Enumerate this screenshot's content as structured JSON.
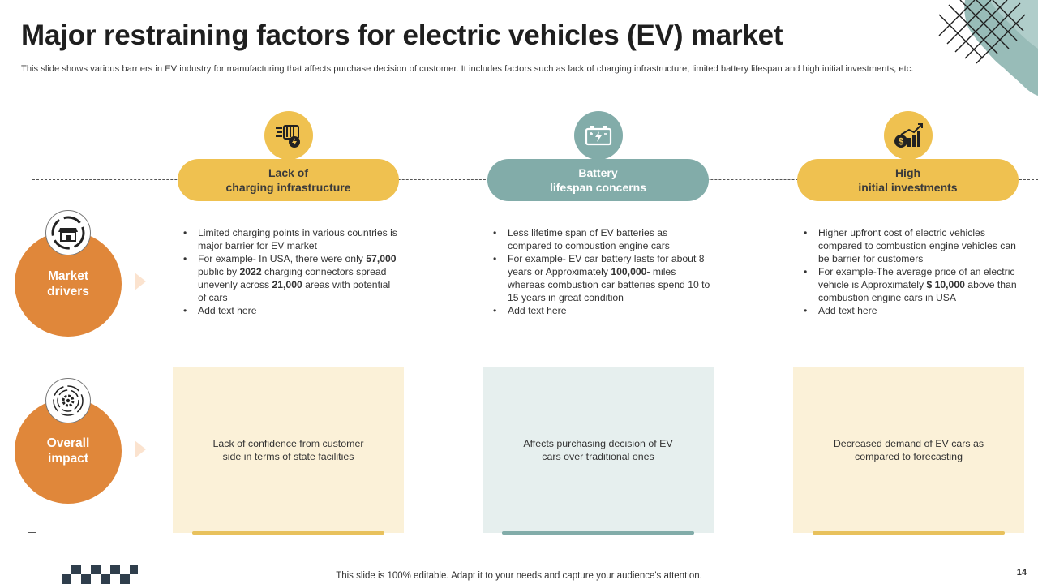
{
  "title": "Major restraining factors for electric vehicles (EV) market",
  "subtitle": "This slide shows various barriers in EV industry for manufacturing that affects purchase decision of customer. It includes factors such as lack of charging infrastructure, limited battery lifespan and high initial investments, etc.",
  "columns": [
    {
      "heading_line1": "Lack of",
      "heading_line2": "charging infrastructure",
      "icon": "charging-station-icon",
      "bullets": [
        [
          {
            "t": "Limited charging points in various countries is major barrier for EV market"
          }
        ],
        [
          {
            "t": "For example- In USA, there were only "
          },
          {
            "t": "57,000",
            "b": true
          },
          {
            "t": " public by "
          },
          {
            "t": "2022",
            "b": true
          },
          {
            "t": " charging connectors spread unevenly across "
          },
          {
            "t": "21,000",
            "b": true
          },
          {
            "t": " areas with potential of cars"
          }
        ],
        [
          {
            "t": "Add text here"
          }
        ]
      ],
      "impact": "Lack of confidence from customer side in terms of state facilities"
    },
    {
      "heading_line1": "Battery",
      "heading_line2": "lifespan concerns",
      "icon": "battery-icon",
      "bullets": [
        [
          {
            "t": "Less lifetime span of EV batteries as compared to  combustion engine cars"
          }
        ],
        [
          {
            "t": "For example- EV car battery lasts for about 8 years or Approximately "
          },
          {
            "t": "100,000-",
            "b": true
          },
          {
            "t": " miles whereas combustion car batteries spend 10 to 15 years in great condition"
          }
        ],
        [
          {
            "t": "Add text here"
          }
        ]
      ],
      "impact": "Affects purchasing decision of EV cars over traditional ones"
    },
    {
      "heading_line1": "High",
      "heading_line2": "initial investments",
      "icon": "investment-growth-icon",
      "bullets": [
        [
          {
            "t": "Higher upfront cost of electric vehicles compared to combustion engine vehicles can be barrier for customers"
          }
        ],
        [
          {
            "t": "For example-The average price of an electric vehicle is Approximately "
          },
          {
            "t": "$ 10,000",
            "b": true
          },
          {
            "t": " above than combustion engine cars in USA"
          }
        ],
        [
          {
            "t": "Add text here"
          }
        ]
      ],
      "impact": "Decreased demand of EV cars as compared to forecasting"
    }
  ],
  "rows": {
    "drivers": {
      "line1": "Market",
      "line2": "drivers",
      "icon": "market-shop-icon"
    },
    "impact": {
      "line1": "Overall",
      "line2": "impact",
      "icon": "gear-target-icon"
    }
  },
  "colors": {
    "yellow": "#efc150",
    "teal": "#82aca9",
    "orange": "#e0873a"
  },
  "footer": "This slide is 100% editable. Adapt it to your needs and capture your audience's attention.",
  "page_number": "14"
}
